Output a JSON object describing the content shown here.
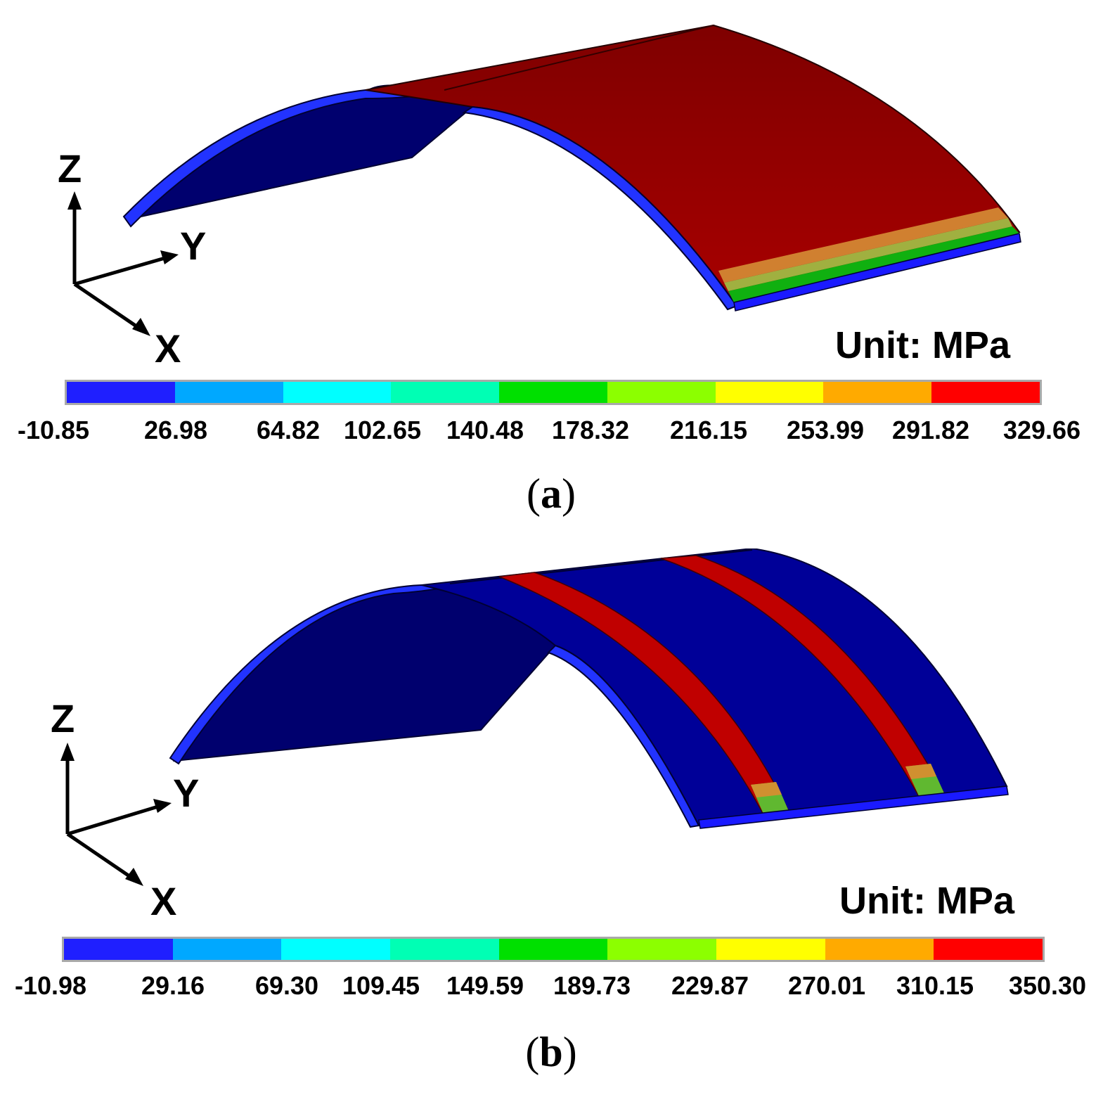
{
  "panels": [
    {
      "id": "a",
      "caption_letter": "a",
      "unit_label": "Unit: MPa",
      "axes": {
        "z": "Z",
        "y": "Y",
        "x": "X"
      },
      "colorbar_ticks": [
        "-10.85",
        "26.98",
        "64.82",
        "102.65",
        "140.48",
        "178.32",
        "216.15",
        "253.99",
        "291.82",
        "329.66"
      ]
    },
    {
      "id": "b",
      "caption_letter": "b",
      "unit_label": "Unit: MPa",
      "axes": {
        "z": "Z",
        "y": "Y",
        "x": "X"
      },
      "colorbar_ticks": [
        "-10.98",
        "29.16",
        "69.30",
        "109.45",
        "149.59",
        "189.73",
        "229.87",
        "270.01",
        "310.15",
        "350.30"
      ]
    }
  ],
  "colorbar_colors": [
    "#1f1fff",
    "#00a8ff",
    "#00ffff",
    "#00ffb4",
    "#00e000",
    "#8cff00",
    "#ffff00",
    "#ffaa00",
    "#ff0000"
  ]
}
